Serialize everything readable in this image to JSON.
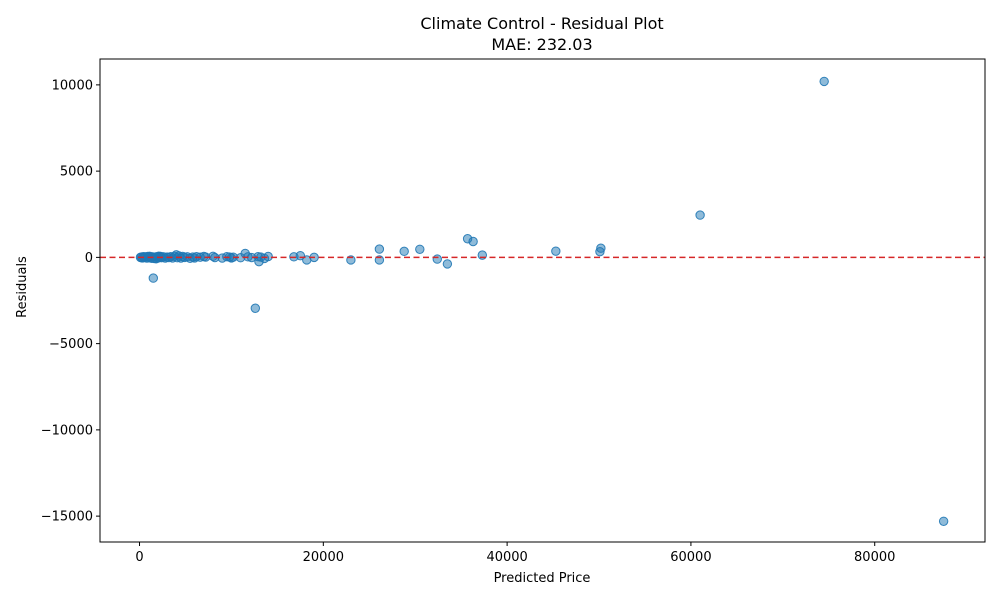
{
  "chart_data": {
    "type": "scatter",
    "title": "Climate Control - Residual Plot",
    "subtitle": "MAE: 232.03",
    "xlabel": "Predicted Price",
    "ylabel": "Residuals",
    "xlim": [
      -4300,
      92000
    ],
    "ylim": [
      -16500,
      11500
    ],
    "x_ticks": [
      0,
      20000,
      40000,
      60000,
      80000
    ],
    "x_tick_labels": [
      "0",
      "20000",
      "40000",
      "60000",
      "80000"
    ],
    "y_ticks": [
      -15000,
      -10000,
      -5000,
      0,
      5000,
      10000
    ],
    "y_tick_labels": [
      "−15000",
      "−10000",
      "−5000",
      "0",
      "5000",
      "10000"
    ],
    "grid": false,
    "reference_line": {
      "y": 0,
      "style": "dashed",
      "color": "#d62728"
    },
    "marker_color": "#1f77b4",
    "marker_alpha": 0.5,
    "points": [
      {
        "x": 100,
        "y": 0
      },
      {
        "x": 200,
        "y": 20
      },
      {
        "x": 300,
        "y": -30
      },
      {
        "x": 400,
        "y": 40
      },
      {
        "x": 500,
        "y": -10
      },
      {
        "x": 600,
        "y": 30
      },
      {
        "x": 800,
        "y": -40
      },
      {
        "x": 900,
        "y": 50
      },
      {
        "x": 1000,
        "y": -20
      },
      {
        "x": 1100,
        "y": 60
      },
      {
        "x": 1200,
        "y": 10
      },
      {
        "x": 1300,
        "y": -50
      },
      {
        "x": 1400,
        "y": 30
      },
      {
        "x": 1500,
        "y": -1200
      },
      {
        "x": 1600,
        "y": -60
      },
      {
        "x": 1700,
        "y": 20
      },
      {
        "x": 1800,
        "y": -80
      },
      {
        "x": 1900,
        "y": 40
      },
      {
        "x": 2000,
        "y": -30
      },
      {
        "x": 2100,
        "y": 70
      },
      {
        "x": 2200,
        "y": 0
      },
      {
        "x": 2300,
        "y": 50
      },
      {
        "x": 2400,
        "y": -20
      },
      {
        "x": 2600,
        "y": 30
      },
      {
        "x": 2800,
        "y": -40
      },
      {
        "x": 3000,
        "y": 20
      },
      {
        "x": 3200,
        "y": -10
      },
      {
        "x": 3400,
        "y": 40
      },
      {
        "x": 3600,
        "y": -30
      },
      {
        "x": 3800,
        "y": 60
      },
      {
        "x": 4000,
        "y": 150
      },
      {
        "x": 4100,
        "y": -20
      },
      {
        "x": 4300,
        "y": 80
      },
      {
        "x": 4500,
        "y": -40
      },
      {
        "x": 4700,
        "y": 50
      },
      {
        "x": 4900,
        "y": 0
      },
      {
        "x": 5200,
        "y": 30
      },
      {
        "x": 5500,
        "y": -50
      },
      {
        "x": 5800,
        "y": 20
      },
      {
        "x": 6000,
        "y": -30
      },
      {
        "x": 6200,
        "y": 40
      },
      {
        "x": 6600,
        "y": 10
      },
      {
        "x": 7000,
        "y": 50
      },
      {
        "x": 7200,
        "y": 20
      },
      {
        "x": 8000,
        "y": 60
      },
      {
        "x": 8200,
        "y": -10
      },
      {
        "x": 9000,
        "y": -40
      },
      {
        "x": 9500,
        "y": 40
      },
      {
        "x": 9800,
        "y": 20
      },
      {
        "x": 10000,
        "y": -30
      },
      {
        "x": 10200,
        "y": 10
      },
      {
        "x": 11000,
        "y": -20
      },
      {
        "x": 11500,
        "y": 230
      },
      {
        "x": 11800,
        "y": 30
      },
      {
        "x": 12200,
        "y": -10
      },
      {
        "x": 12600,
        "y": -2950
      },
      {
        "x": 12900,
        "y": 40
      },
      {
        "x": 13000,
        "y": -250
      },
      {
        "x": 13200,
        "y": 20
      },
      {
        "x": 13600,
        "y": -60
      },
      {
        "x": 14000,
        "y": 50
      },
      {
        "x": 16800,
        "y": 30
      },
      {
        "x": 17500,
        "y": 100
      },
      {
        "x": 18200,
        "y": -150
      },
      {
        "x": 19000,
        "y": 0
      },
      {
        "x": 23000,
        "y": -150
      },
      {
        "x": 26100,
        "y": 480
      },
      {
        "x": 26100,
        "y": -150
      },
      {
        "x": 28800,
        "y": 350
      },
      {
        "x": 30500,
        "y": 470
      },
      {
        "x": 32400,
        "y": -100
      },
      {
        "x": 33500,
        "y": -380
      },
      {
        "x": 35700,
        "y": 1080
      },
      {
        "x": 36300,
        "y": 920
      },
      {
        "x": 37300,
        "y": 130
      },
      {
        "x": 45300,
        "y": 360
      },
      {
        "x": 50100,
        "y": 330
      },
      {
        "x": 50200,
        "y": 530
      },
      {
        "x": 61000,
        "y": 2450
      },
      {
        "x": 74500,
        "y": 10200
      },
      {
        "x": 87500,
        "y": -15300
      }
    ]
  }
}
